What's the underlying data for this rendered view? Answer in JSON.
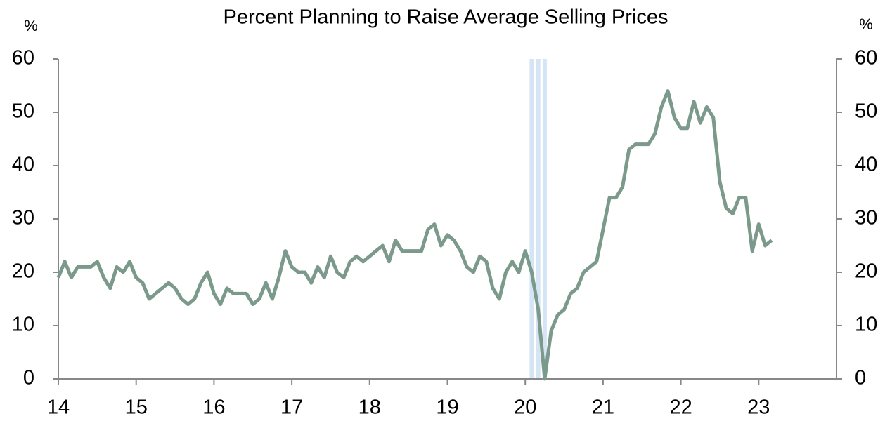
{
  "chart_data": {
    "type": "line",
    "title": "Percent Planning to Raise Average Selling Prices",
    "y_unit_left": "%",
    "y_unit_right": "%",
    "x": [
      14,
      14.083,
      14.167,
      14.25,
      14.333,
      14.417,
      14.5,
      14.583,
      14.667,
      14.75,
      14.833,
      14.917,
      15,
      15.083,
      15.167,
      15.25,
      15.333,
      15.417,
      15.5,
      15.583,
      15.667,
      15.75,
      15.833,
      15.917,
      16,
      16.083,
      16.167,
      16.25,
      16.333,
      16.417,
      16.5,
      16.583,
      16.667,
      16.75,
      16.833,
      16.917,
      17,
      17.083,
      17.167,
      17.25,
      17.333,
      17.417,
      17.5,
      17.583,
      17.667,
      17.75,
      17.833,
      17.917,
      18,
      18.083,
      18.167,
      18.25,
      18.333,
      18.417,
      18.5,
      18.583,
      18.667,
      18.75,
      18.833,
      18.917,
      19,
      19.083,
      19.167,
      19.25,
      19.333,
      19.417,
      19.5,
      19.583,
      19.667,
      19.75,
      19.833,
      19.917,
      20,
      20.083,
      20.167,
      20.25,
      20.333,
      20.417,
      20.5,
      20.583,
      20.667,
      20.75,
      20.833,
      20.917,
      21,
      21.083,
      21.167,
      21.25,
      21.333,
      21.417,
      21.5,
      21.583,
      21.667,
      21.75,
      21.833,
      21.917,
      22,
      22.083,
      22.167,
      22.25,
      22.333,
      22.417,
      22.5,
      22.583,
      22.667,
      22.75,
      22.833,
      22.917,
      23,
      23.083,
      23.167
    ],
    "series": [
      {
        "name": "Percent Planning to Raise Average Selling Prices",
        "color": "#7b9a8b",
        "values": [
          19,
          22,
          19,
          21,
          21,
          21,
          22,
          19,
          17,
          21,
          20,
          22,
          19,
          18,
          15,
          16,
          17,
          18,
          17,
          15,
          14,
          15,
          18,
          20,
          16,
          14,
          17,
          16,
          16,
          16,
          14,
          15,
          18,
          15,
          19,
          24,
          21,
          20,
          20,
          18,
          21,
          19,
          23,
          20,
          19,
          22,
          23,
          22,
          23,
          24,
          25,
          22,
          26,
          24,
          24,
          24,
          24,
          28,
          29,
          25,
          27,
          26,
          24,
          21,
          20,
          23,
          22,
          17,
          15,
          20,
          22,
          20,
          24,
          20,
          13,
          0,
          9,
          12,
          13,
          16,
          17,
          20,
          21,
          22,
          28,
          34,
          34,
          36,
          43,
          44,
          44,
          44,
          46,
          51,
          54,
          49,
          47,
          47,
          52,
          48,
          51,
          49,
          37,
          32,
          31,
          34,
          34,
          24,
          29,
          25,
          26
        ]
      }
    ],
    "shading": {
      "color": "#d5e5f5",
      "x": [
        20.083,
        20.167,
        20.25
      ]
    },
    "xlim": [
      14,
      24
    ],
    "xticks": [
      14,
      15,
      16,
      17,
      18,
      19,
      20,
      21,
      22,
      23
    ],
    "ylim": [
      0,
      60
    ],
    "yticks": [
      0,
      10,
      20,
      30,
      40,
      50,
      60
    ],
    "y2lim": [
      0,
      60
    ],
    "y2ticks": [
      0,
      10,
      20,
      30,
      40,
      50,
      60
    ]
  }
}
